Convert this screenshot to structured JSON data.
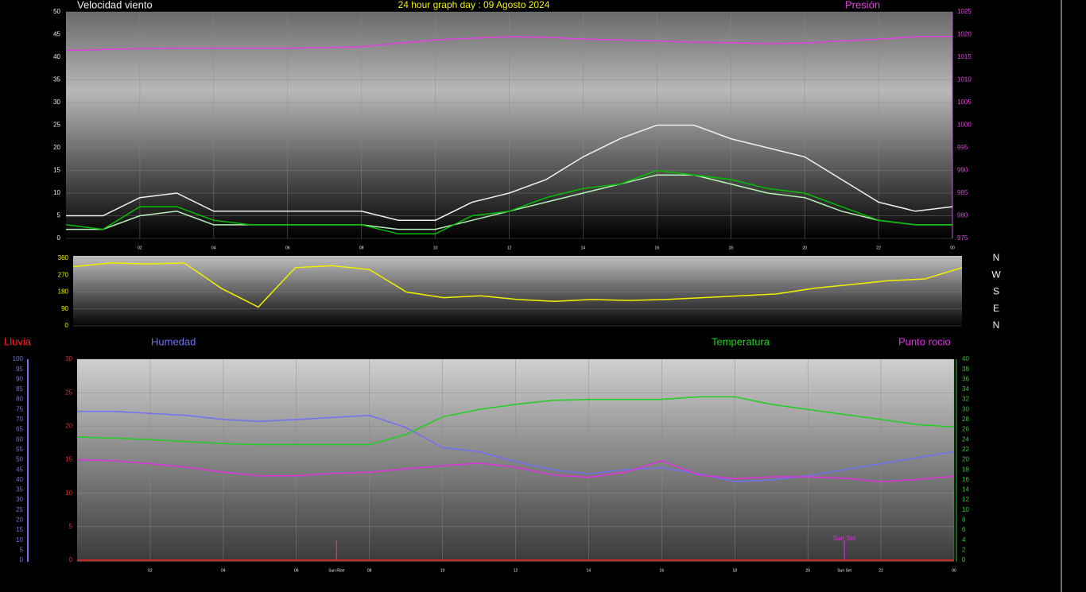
{
  "chart_data": [
    {
      "type": "line",
      "title": "24 hour graph day : 09 Agosto 2024",
      "grid": true,
      "x": [
        0,
        1,
        2,
        3,
        4,
        5,
        6,
        7,
        8,
        9,
        10,
        11,
        12,
        13,
        14,
        15,
        16,
        17,
        18,
        19,
        20,
        21,
        22,
        23,
        24
      ],
      "xlim": [
        0,
        24
      ],
      "xticks": [
        {
          "value": 2,
          "label": "02"
        },
        {
          "value": 4,
          "label": "04"
        },
        {
          "value": 6,
          "label": "06"
        },
        {
          "value": 8,
          "label": "08"
        },
        10,
        12,
        14,
        16,
        18,
        20,
        22,
        {
          "value": 24,
          "label": "00"
        }
      ],
      "ylim": [
        0,
        50
      ],
      "yticks": [
        0,
        5,
        10,
        15,
        20,
        25,
        30,
        35,
        40,
        45,
        50
      ],
      "y2lim": [
        975,
        1025
      ],
      "y2ticks": [
        975,
        980,
        985,
        990,
        995,
        1000,
        1005,
        1010,
        1015,
        1020,
        1025
      ],
      "series": [
        {
          "name": "Velocidad viento",
          "color": "#f0f0f0",
          "values": [
            5,
            5,
            9,
            10,
            6,
            6,
            6,
            6,
            6,
            4,
            4,
            8,
            10,
            13,
            18,
            22,
            25,
            25,
            22,
            20,
            18,
            13,
            8,
            6,
            7
          ]
        },
        {
          "color": "#b8f0b8",
          "values": [
            2,
            2,
            5,
            6,
            3,
            3,
            3,
            3,
            3,
            2,
            2,
            4,
            6,
            8,
            10,
            12,
            14,
            14,
            12,
            10,
            9,
            6,
            4,
            3,
            3
          ]
        },
        {
          "color": "#00c000",
          "values": [
            3,
            2,
            7,
            7,
            4,
            3,
            3,
            3,
            3,
            1,
            1,
            5,
            6,
            9,
            11,
            12,
            15,
            14,
            13,
            11,
            10,
            7,
            4,
            3,
            3
          ]
        },
        {
          "name": "Presión",
          "color": "#e040e0",
          "axis": "y2",
          "values": [
            1016.5,
            1016.7,
            1016.9,
            1017,
            1017,
            1017,
            1017,
            1017.1,
            1017.3,
            1018.1,
            1018.8,
            1019.2,
            1019.5,
            1019.4,
            1019,
            1018.8,
            1018.6,
            1018.3,
            1018.2,
            1018,
            1018.1,
            1018.6,
            1019,
            1019.5,
            1019.5
          ]
        }
      ]
    },
    {
      "type": "line",
      "grid": true,
      "x": [
        0,
        1,
        2,
        3,
        4,
        5,
        6,
        7,
        8,
        9,
        10,
        11,
        12,
        13,
        14,
        15,
        16,
        17,
        18,
        19,
        20,
        21,
        22,
        23,
        24
      ],
      "xlim": [
        0,
        24
      ],
      "ylim": [
        0,
        360
      ],
      "yticks": [
        0,
        90,
        180,
        270,
        360
      ],
      "y2lim": [
        0,
        360
      ],
      "y2ticks": [
        {
          "value": 360,
          "label": "N"
        },
        {
          "value": 270,
          "label": "W"
        },
        {
          "value": 180,
          "label": "S"
        },
        {
          "value": 90,
          "label": "E"
        },
        {
          "value": 0,
          "label": "N"
        }
      ],
      "series": [
        {
          "color": "#f0f000",
          "values": [
            315,
            335,
            330,
            335,
            200,
            100,
            310,
            320,
            300,
            180,
            150,
            160,
            140,
            130,
            140,
            135,
            140,
            150,
            160,
            170,
            200,
            220,
            240,
            250,
            310
          ]
        }
      ]
    },
    {
      "type": "line",
      "grid": true,
      "x": [
        0,
        1,
        2,
        3,
        4,
        5,
        6,
        7,
        8,
        9,
        10,
        11,
        12,
        13,
        14,
        15,
        16,
        17,
        18,
        19,
        20,
        21,
        22,
        23,
        24
      ],
      "xlim": [
        0,
        24
      ],
      "xticks": [
        {
          "value": 2,
          "label": "02"
        },
        {
          "value": 4,
          "label": "04"
        },
        {
          "value": 6,
          "label": "06"
        },
        {
          "value": 8,
          "label": "08"
        },
        10,
        12,
        14,
        16,
        18,
        20,
        22,
        {
          "value": 24,
          "label": "00"
        }
      ],
      "ylim": [
        0,
        30
      ],
      "yticks": [
        0,
        5,
        10,
        15,
        20,
        25,
        30
      ],
      "y2lim": [
        0,
        40
      ],
      "y2ticks": [
        0,
        2,
        4,
        6,
        8,
        10,
        12,
        14,
        16,
        18,
        20,
        22,
        24,
        26,
        28,
        30,
        32,
        34,
        36,
        38,
        40
      ],
      "y3lim": [
        0,
        100
      ],
      "y3ticks": [
        0,
        5,
        10,
        15,
        20,
        25,
        30,
        35,
        40,
        45,
        50,
        55,
        60,
        65,
        70,
        75,
        80,
        85,
        90,
        95,
        100
      ],
      "series": [
        {
          "name": "Lluvia",
          "color": "#ff2020",
          "values": [
            0,
            0,
            0,
            0,
            0,
            0,
            0,
            0,
            0,
            0,
            0,
            0,
            0,
            0,
            0,
            0,
            0,
            0,
            0,
            0,
            0,
            0,
            0,
            0,
            0
          ]
        },
        {
          "name": "Humedad",
          "color": "#7070f0",
          "axis": "y3",
          "values": [
            74,
            74,
            73,
            72,
            70,
            69,
            70,
            71,
            72,
            66,
            56,
            54,
            49,
            45,
            43,
            45,
            46,
            43,
            39,
            40,
            42,
            45,
            48,
            51,
            54
          ]
        },
        {
          "name": "Temperatura",
          "color": "#20d020",
          "axis": "y2",
          "values": [
            24.5,
            24.3,
            24,
            23.6,
            23.2,
            23,
            23,
            23,
            23,
            25,
            28.5,
            30,
            31,
            31.8,
            32,
            32,
            32,
            32.5,
            32.5,
            31,
            30,
            29,
            28,
            27,
            26.5
          ]
        },
        {
          "name": "Punto rocio",
          "color": "#e030e0",
          "axis": "y2",
          "values": [
            20,
            19.8,
            19.2,
            18.5,
            17.5,
            16.8,
            16.8,
            17.3,
            17.5,
            18.2,
            18.8,
            19.3,
            18.5,
            17,
            16.5,
            17.5,
            19.8,
            17,
            16.2,
            16.6,
            16.6,
            16.3,
            15.6,
            16.1,
            16.7
          ]
        }
      ],
      "annotations": [
        {
          "text": "Sun Rise",
          "x": 7.1
        },
        {
          "text": "Sun Set",
          "x": 21
        }
      ],
      "marker_label": "Sun Set"
    }
  ]
}
